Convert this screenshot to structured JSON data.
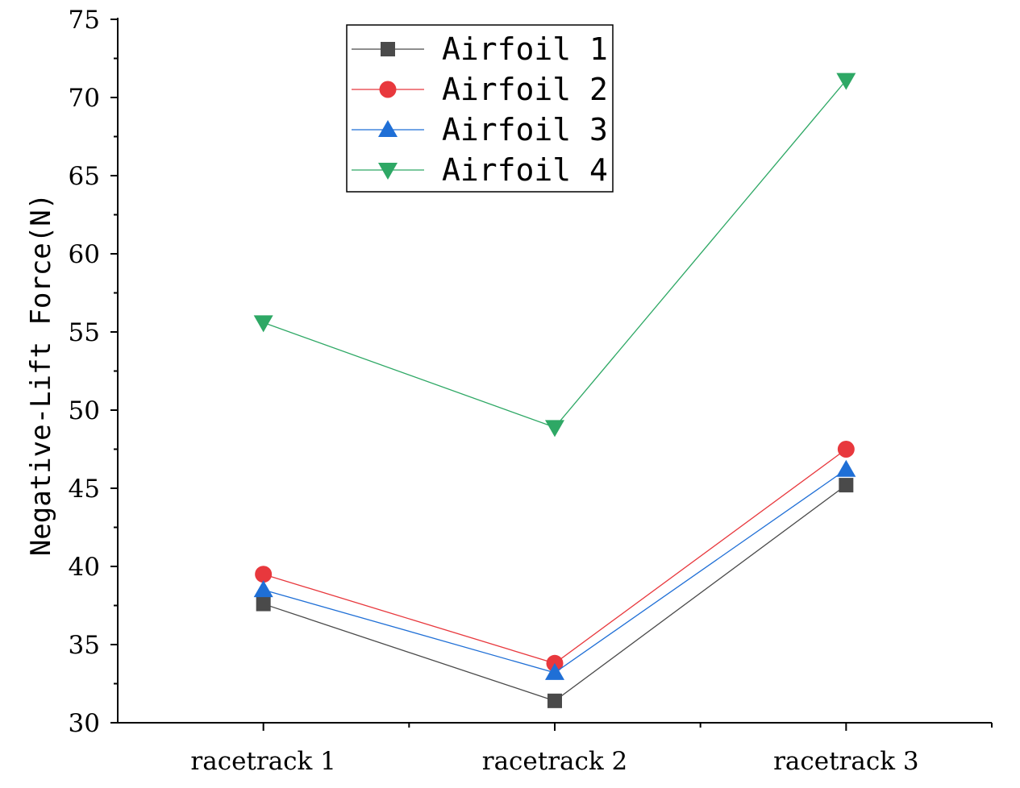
{
  "chart_data": {
    "type": "line",
    "title": "",
    "xlabel": "",
    "ylabel": "Negative-Lift Force(N)",
    "categories": [
      "racetrack 1",
      "racetrack 2",
      "racetrack 3"
    ],
    "ylim": [
      30,
      75
    ],
    "yticks": [
      "30",
      "35",
      "40",
      "45",
      "50",
      "55",
      "60",
      "65",
      "70",
      "75"
    ],
    "grid": false,
    "legend_position": "top-center",
    "series": [
      {
        "name": "Airfoil 1",
        "marker": "square",
        "color": "#4a4a4a",
        "values": [
          37.6,
          31.4,
          45.2
        ]
      },
      {
        "name": "Airfoil 2",
        "marker": "circle",
        "color": "#e8383d",
        "values": [
          39.5,
          33.8,
          47.5
        ]
      },
      {
        "name": "Airfoil 3",
        "marker": "triangle-up",
        "color": "#1f6fd6",
        "values": [
          38.5,
          33.2,
          46.2
        ]
      },
      {
        "name": "Airfoil 4",
        "marker": "triangle-down",
        "color": "#2ea865",
        "values": [
          55.6,
          48.9,
          71.1
        ]
      }
    ]
  }
}
